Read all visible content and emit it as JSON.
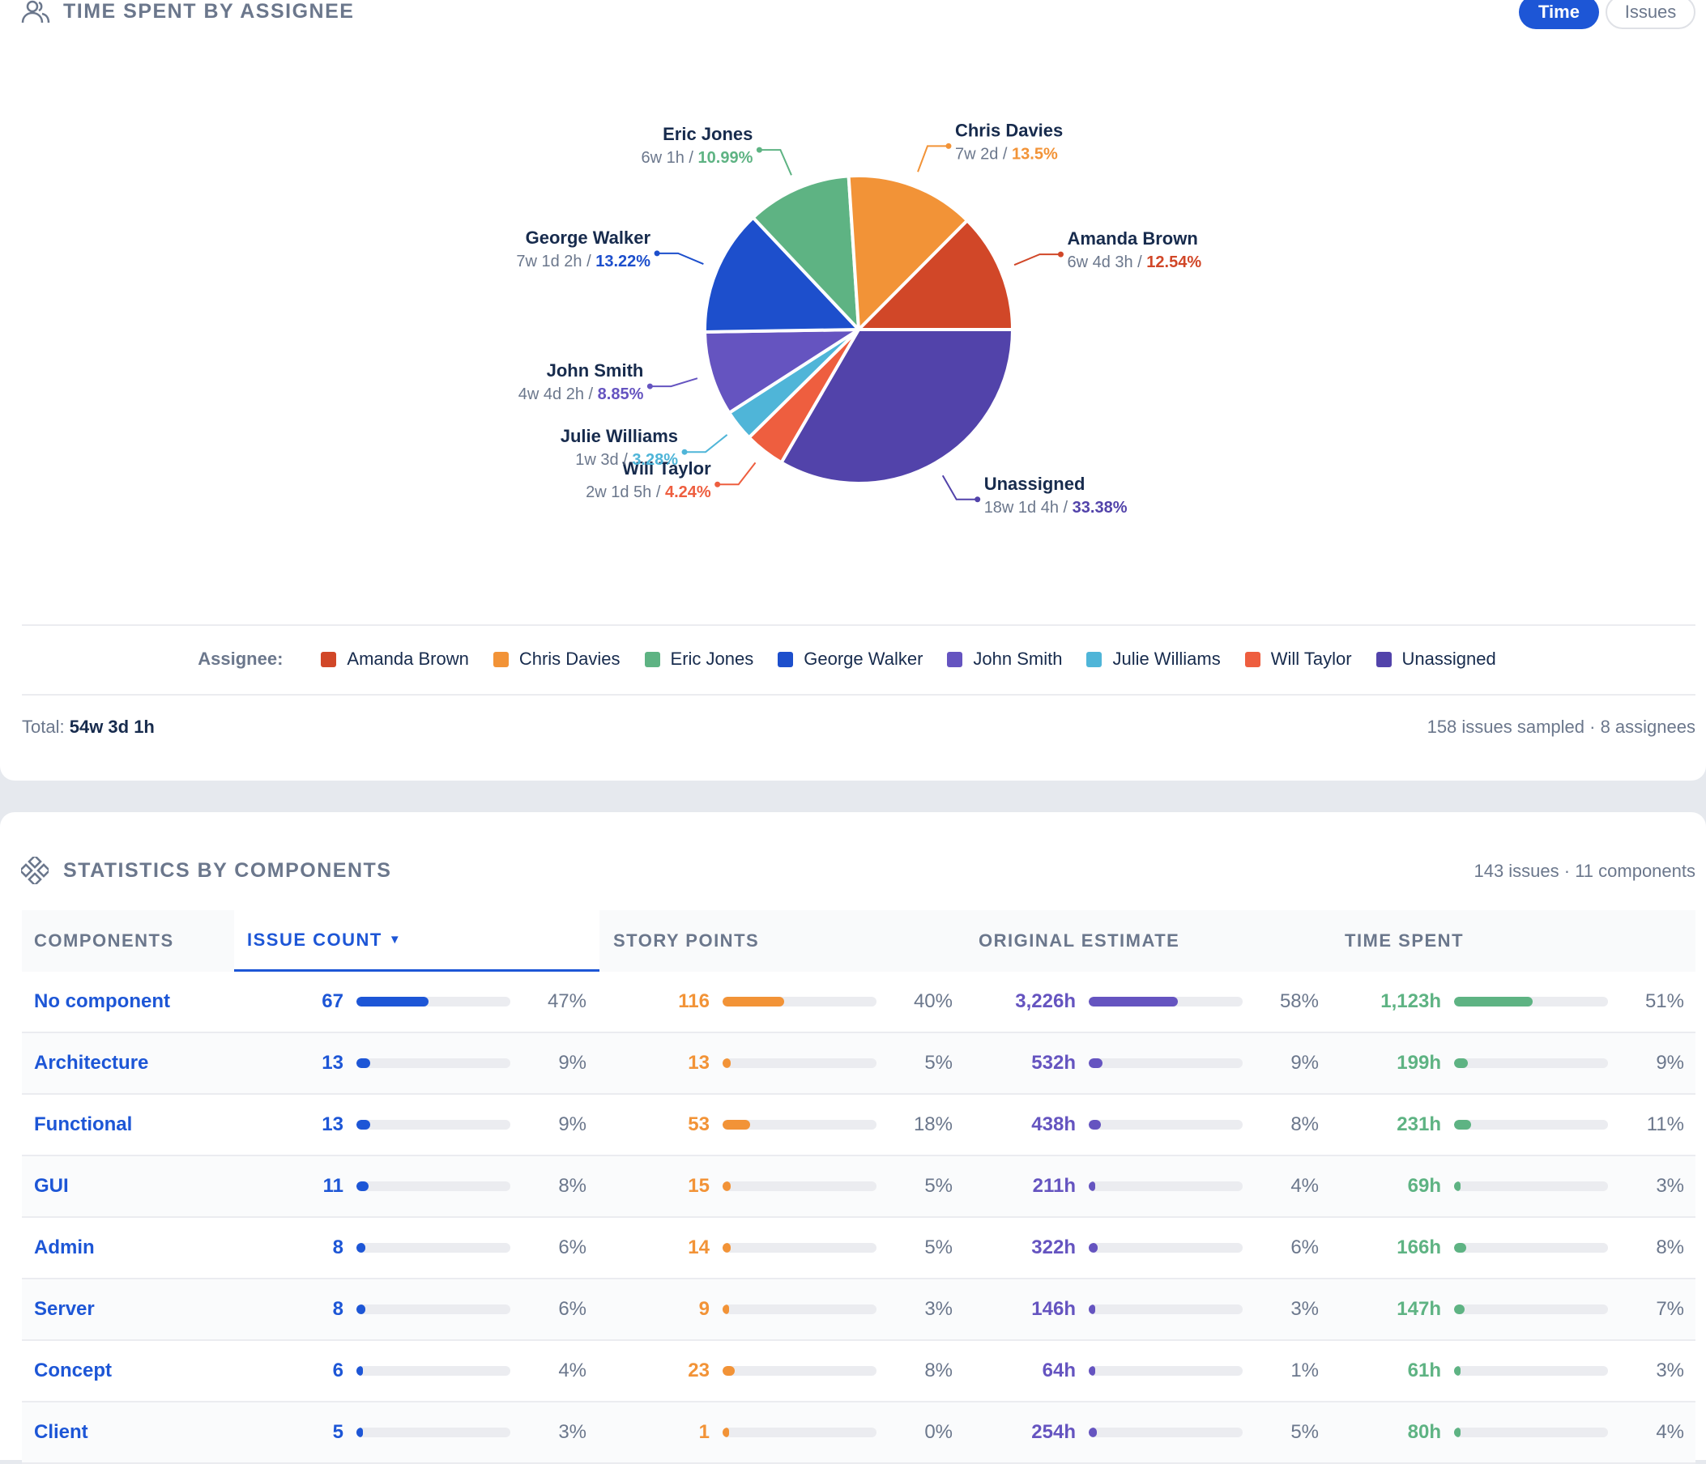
{
  "assignee_panel": {
    "title": "TIME SPENT BY ASSIGNEE",
    "toggle": {
      "time_label": "Time",
      "issues_label": "Issues",
      "selected": "Time"
    },
    "legend_title": "Assignee:",
    "total_label": "Total:",
    "total_value": "54w 3d 1h",
    "summary": "158 issues sampled · 8 assignees"
  },
  "chart_data": {
    "type": "pie",
    "slices": [
      {
        "name": "Unassigned",
        "time": "18w 1d 4h",
        "percent": 33.38,
        "percent_label": "33.38%",
        "color": "#5243aa"
      },
      {
        "name": "Will Taylor",
        "time": "2w 1d 5h",
        "percent": 4.24,
        "percent_label": "4.24%",
        "color": "#ee5e3f"
      },
      {
        "name": "Julie Williams",
        "time": "1w 3d",
        "percent": 3.28,
        "percent_label": "3.28%",
        "color": "#4fb5d8"
      },
      {
        "name": "John Smith",
        "time": "4w 4d 2h",
        "percent": 8.85,
        "percent_label": "8.85%",
        "color": "#6554c0"
      },
      {
        "name": "George Walker",
        "time": "7w 1d 2h",
        "percent": 13.22,
        "percent_label": "13.22%",
        "color": "#1d4fcc"
      },
      {
        "name": "Eric Jones",
        "time": "6w 1h",
        "percent": 10.99,
        "percent_label": "10.99%",
        "color": "#5eb383"
      },
      {
        "name": "Chris Davies",
        "time": "7w 2d",
        "percent": 13.5,
        "percent_label": "13.5%",
        "color": "#f29337"
      },
      {
        "name": "Amanda Brown",
        "time": "6w 4d 3h",
        "percent": 12.54,
        "percent_label": "12.54%",
        "color": "#d14728"
      }
    ],
    "legend_order": [
      "Amanda Brown",
      "Chris Davies",
      "Eric Jones",
      "George Walker",
      "John Smith",
      "Julie Williams",
      "Will Taylor",
      "Unassigned"
    ]
  },
  "components_panel": {
    "title": "STATISTICS BY COMPONENTS",
    "summary": "143 issues · 11 components",
    "columns": {
      "components": "COMPONENTS",
      "issue_count": "ISSUE COUNT",
      "sort_indicator": "▼",
      "story_points": "STORY POINTS",
      "original_estimate": "ORIGINAL ESTIMATE",
      "time_spent": "TIME SPENT"
    },
    "colors": {
      "issue_count": "#1d56d6",
      "story_points": "#f29337",
      "original_estimate": "#6554c0",
      "time_spent": "#5eb383"
    },
    "rows": [
      {
        "name": "No component",
        "issue_count": "67",
        "issue_pct": "47%",
        "story_points": "116",
        "sp_pct": "40%",
        "original_estimate": "3,226h",
        "oe_pct": "58%",
        "time_spent": "1,123h",
        "ts_pct": "51%"
      },
      {
        "name": "Architecture",
        "issue_count": "13",
        "issue_pct": "9%",
        "story_points": "13",
        "sp_pct": "5%",
        "original_estimate": "532h",
        "oe_pct": "9%",
        "time_spent": "199h",
        "ts_pct": "9%"
      },
      {
        "name": "Functional",
        "issue_count": "13",
        "issue_pct": "9%",
        "story_points": "53",
        "sp_pct": "18%",
        "original_estimate": "438h",
        "oe_pct": "8%",
        "time_spent": "231h",
        "ts_pct": "11%"
      },
      {
        "name": "GUI",
        "issue_count": "11",
        "issue_pct": "8%",
        "story_points": "15",
        "sp_pct": "5%",
        "original_estimate": "211h",
        "oe_pct": "4%",
        "time_spent": "69h",
        "ts_pct": "3%"
      },
      {
        "name": "Admin",
        "issue_count": "8",
        "issue_pct": "6%",
        "story_points": "14",
        "sp_pct": "5%",
        "original_estimate": "322h",
        "oe_pct": "6%",
        "time_spent": "166h",
        "ts_pct": "8%"
      },
      {
        "name": "Server",
        "issue_count": "8",
        "issue_pct": "6%",
        "story_points": "9",
        "sp_pct": "3%",
        "original_estimate": "146h",
        "oe_pct": "3%",
        "time_spent": "147h",
        "ts_pct": "7%"
      },
      {
        "name": "Concept",
        "issue_count": "6",
        "issue_pct": "4%",
        "story_points": "23",
        "sp_pct": "8%",
        "original_estimate": "64h",
        "oe_pct": "1%",
        "time_spent": "61h",
        "ts_pct": "3%"
      },
      {
        "name": "Client",
        "issue_count": "5",
        "issue_pct": "3%",
        "story_points": "1",
        "sp_pct": "0%",
        "original_estimate": "254h",
        "oe_pct": "5%",
        "time_spent": "80h",
        "ts_pct": "4%"
      }
    ]
  }
}
